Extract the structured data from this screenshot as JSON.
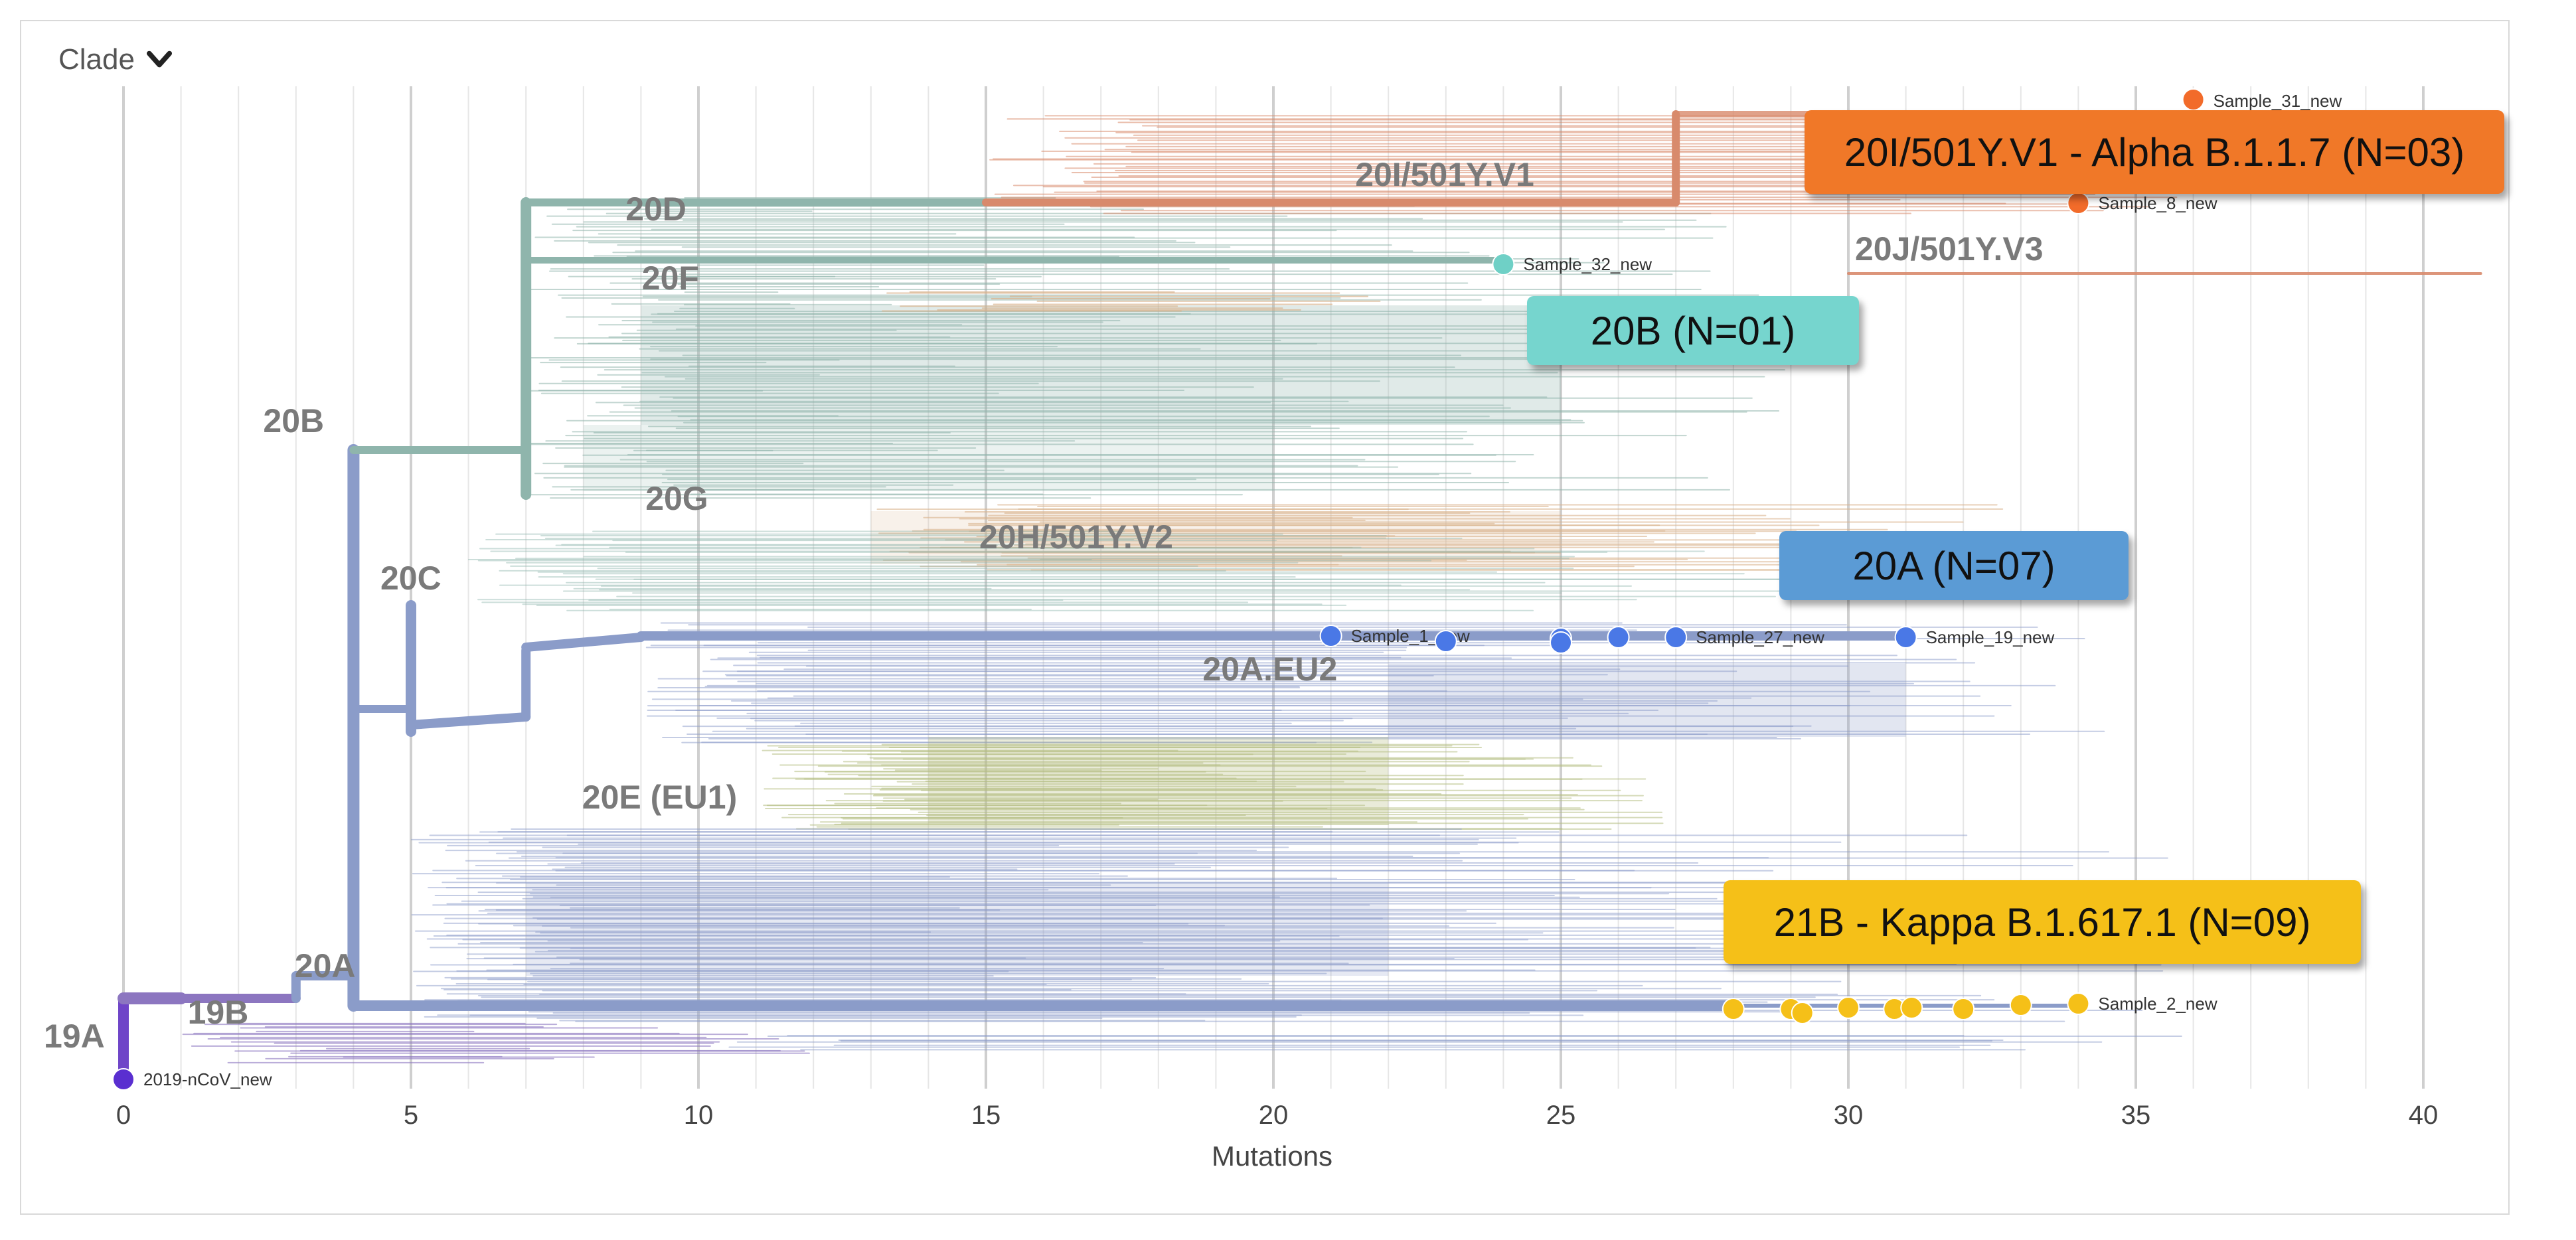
{
  "controls": {
    "color_by_label": "Clade"
  },
  "colors": {
    "root": "#6f45c8",
    "clade_19B": "#8c76c0",
    "clade_20A": "#8b9cc9",
    "clade_20B": "#8fb5ac",
    "alpha": "#d88a6c",
    "gamma": "#d8b28c",
    "eu1": "#b5bd82",
    "callout_alpha": "#f07828",
    "callout_20B": "#76d5ce",
    "callout_20A": "#5b9bd5",
    "callout_kappa": "#f5c018",
    "marker_blue": "#4a78e6",
    "marker_yellow": "#f5c018",
    "marker_orange": "#f26b2a",
    "marker_teal": "#6fd0c6",
    "marker_root": "#5a2fd0"
  },
  "chart_data": {
    "type": "phylogenetic-tree",
    "xlabel": "Mutations",
    "xlim": [
      0,
      40
    ],
    "x_ticks": [
      0,
      5,
      10,
      15,
      20,
      25,
      30,
      35,
      40
    ],
    "grid": true,
    "clade_labels": [
      {
        "name": "19A",
        "x": 0
      },
      {
        "name": "19B",
        "x": 1
      },
      {
        "name": "20A",
        "x": 3
      },
      {
        "name": "20B",
        "x": 4
      },
      {
        "name": "20C",
        "x": 5
      },
      {
        "name": "20D",
        "x": 7
      },
      {
        "name": "20F",
        "x": 8
      },
      {
        "name": "20G",
        "x": 7
      },
      {
        "name": "20H/501Y.V2",
        "x": 15
      },
      {
        "name": "20I/501Y.V1",
        "x": 22
      },
      {
        "name": "20J/501Y.V3",
        "x": 30
      },
      {
        "name": "20A.EU2",
        "x": 19
      },
      {
        "name": "20E (EU1)",
        "x": 8
      }
    ],
    "samples": [
      {
        "label": "2019-nCoV_new",
        "x": 0,
        "group": "root"
      },
      {
        "label": "Sample_32_new",
        "x": 24,
        "group": "20B"
      },
      {
        "label": "Sample_31_new",
        "x": 36,
        "group": "alpha"
      },
      {
        "label": "Sample_8_new",
        "x": 34,
        "group": "alpha"
      },
      {
        "label": "Sample_1_new",
        "x": 21,
        "group": "20A"
      },
      {
        "label": "Sample_19_new",
        "x": 31,
        "group": "20A"
      },
      {
        "label": "Sample_27_new",
        "x": 27,
        "group": "20A"
      },
      {
        "label": "Sample_2_new",
        "x": 34,
        "group": "kappa"
      }
    ],
    "summary": [
      {
        "label": "20I/501Y.V1 - Alpha B.1.1.7 (N=03)",
        "count": 3
      },
      {
        "label": "20B (N=01)",
        "count": 1
      },
      {
        "label": "20A (N=07)",
        "count": 7
      },
      {
        "label": "21B - Kappa B.1.617.1 (N=09)",
        "count": 9
      }
    ]
  }
}
